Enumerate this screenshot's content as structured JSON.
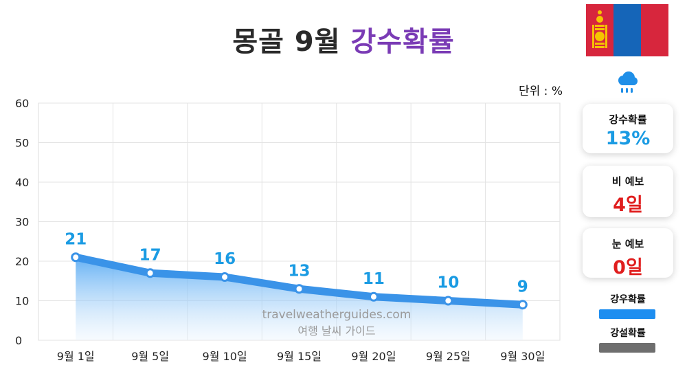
{
  "title": {
    "main": "몽골 9월",
    "accent": "강수확률"
  },
  "unit_label": "단위 : %",
  "side_cards": [
    {
      "label": "강수확률",
      "value": "13%"
    },
    {
      "label": "비 예보",
      "value": "4일"
    },
    {
      "label": "눈 예보",
      "value": "0일"
    }
  ],
  "legend": {
    "rain": "강우확률",
    "snow": "강설확률"
  },
  "watermark": {
    "line1": "travelweatherguides.com",
    "line2": "여행 날씨 가이드"
  },
  "icons": {
    "flag": "mongolia-flag",
    "weather": "rain-cloud-icon"
  },
  "colors": {
    "line": "#3a93e8",
    "labels": "#1a9be3",
    "title_accent": "#7a3bb5",
    "flag_red": "#d7263d",
    "flag_blue": "#1565b8",
    "flag_gold": "#f5c400"
  },
  "chart_data": {
    "type": "area",
    "categories": [
      "9월 1일",
      "9월 5일",
      "9월 10일",
      "9월 15일",
      "9월 20일",
      "9월 25일",
      "9월 30일"
    ],
    "series": [
      {
        "name": "강우확률",
        "values": [
          21,
          17,
          16,
          13,
          11,
          10,
          9
        ]
      }
    ],
    "ylim": [
      0,
      60
    ],
    "yticks": [
      0,
      10,
      20,
      30,
      40,
      50,
      60
    ],
    "data_labels": true,
    "grid": true
  }
}
